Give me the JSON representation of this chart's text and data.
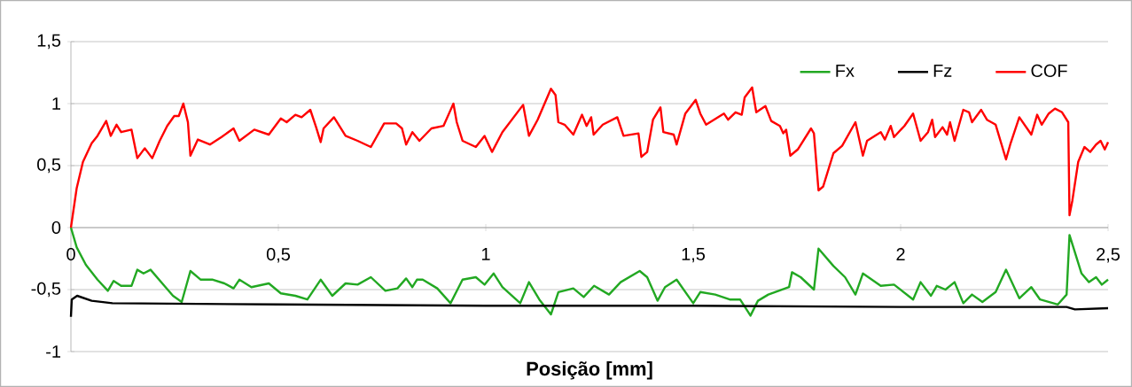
{
  "chart_data": {
    "type": "line",
    "xlabel": "**Posição [mm]**",
    "xlim": [
      0,
      2.5
    ],
    "ylim": [
      -1,
      1.5
    ],
    "xticks": [
      0,
      {
        "value": 0.5,
        "label": "0,5"
      },
      1,
      {
        "value": 1.5,
        "label": "1,5"
      },
      2,
      {
        "value": 2.5,
        "label": "2,5"
      }
    ],
    "yticks": [
      -1,
      {
        "value": -0.5,
        "label": "-0,5"
      },
      0,
      {
        "value": 0.5,
        "label": "0,5"
      },
      1,
      {
        "value": 1.5,
        "label": "1,5"
      }
    ],
    "grid": "y",
    "legend": "top right",
    "series": [
      {
        "name": "Fx",
        "color": "#22a822",
        "x": [
          0,
          0.014,
          0.036,
          0.064,
          0.089,
          0.103,
          0.121,
          0.146,
          0.16,
          0.175,
          0.192,
          0.228,
          0.246,
          0.267,
          0.288,
          0.313,
          0.342,
          0.37,
          0.392,
          0.406,
          0.435,
          0.477,
          0.506,
          0.541,
          0.57,
          0.602,
          0.63,
          0.662,
          0.691,
          0.723,
          0.758,
          0.787,
          0.808,
          0.823,
          0.834,
          0.848,
          0.883,
          0.915,
          0.944,
          0.976,
          0.997,
          1.019,
          1.04,
          1.083,
          1.104,
          1.129,
          1.157,
          1.175,
          1.211,
          1.236,
          1.261,
          1.297,
          1.325,
          1.371,
          1.389,
          1.414,
          1.432,
          1.46,
          1.5,
          1.517,
          1.553,
          1.588,
          1.613,
          1.638,
          1.656,
          1.681,
          1.731,
          1.738,
          1.759,
          1.791,
          1.802,
          1.838,
          1.866,
          1.891,
          1.909,
          1.952,
          1.984,
          2.03,
          2.048,
          2.073,
          2.087,
          2.108,
          2.13,
          2.151,
          2.172,
          2.197,
          2.229,
          2.254,
          2.286,
          2.315,
          2.336,
          2.379,
          2.4,
          2.407,
          2.436,
          2.454,
          2.471,
          2.485,
          2.5
        ],
        "values": [
          0,
          -0.16,
          -0.3,
          -0.42,
          -0.51,
          -0.43,
          -0.47,
          -0.47,
          -0.34,
          -0.37,
          -0.34,
          -0.48,
          -0.55,
          -0.6,
          -0.35,
          -0.42,
          -0.42,
          -0.45,
          -0.49,
          -0.42,
          -0.48,
          -0.45,
          -0.53,
          -0.55,
          -0.58,
          -0.42,
          -0.55,
          -0.45,
          -0.46,
          -0.4,
          -0.51,
          -0.49,
          -0.41,
          -0.48,
          -0.42,
          -0.42,
          -0.49,
          -0.61,
          -0.42,
          -0.4,
          -0.46,
          -0.37,
          -0.48,
          -0.61,
          -0.44,
          -0.58,
          -0.7,
          -0.52,
          -0.49,
          -0.56,
          -0.47,
          -0.54,
          -0.44,
          -0.35,
          -0.4,
          -0.59,
          -0.48,
          -0.42,
          -0.61,
          -0.52,
          -0.54,
          -0.58,
          -0.58,
          -0.71,
          -0.59,
          -0.54,
          -0.48,
          -0.36,
          -0.4,
          -0.5,
          -0.17,
          -0.31,
          -0.4,
          -0.54,
          -0.37,
          -0.47,
          -0.46,
          -0.58,
          -0.44,
          -0.55,
          -0.47,
          -0.5,
          -0.44,
          -0.61,
          -0.54,
          -0.6,
          -0.52,
          -0.34,
          -0.57,
          -0.48,
          -0.58,
          -0.62,
          -0.54,
          -0.06,
          -0.37,
          -0.44,
          -0.4,
          -0.46,
          -0.42
        ]
      },
      {
        "name": "Fz",
        "color": "#000000",
        "x": [
          0,
          0.002,
          0.015,
          0.05,
          0.1,
          0.5,
          1.0,
          1.5,
          2.0,
          2.4,
          2.42,
          2.5
        ],
        "values": [
          -0.72,
          -0.58,
          -0.55,
          -0.59,
          -0.61,
          -0.62,
          -0.63,
          -0.63,
          -0.64,
          -0.64,
          -0.66,
          -0.65
        ]
      },
      {
        "name": "COF",
        "color": "#ff0000",
        "x": [
          0,
          0.014,
          0.029,
          0.05,
          0.064,
          0.085,
          0.096,
          0.11,
          0.121,
          0.146,
          0.16,
          0.178,
          0.196,
          0.214,
          0.232,
          0.249,
          0.26,
          0.271,
          0.282,
          0.288,
          0.306,
          0.335,
          0.363,
          0.392,
          0.406,
          0.442,
          0.477,
          0.506,
          0.52,
          0.541,
          0.556,
          0.577,
          0.591,
          0.602,
          0.609,
          0.634,
          0.662,
          0.691,
          0.723,
          0.755,
          0.784,
          0.798,
          0.808,
          0.823,
          0.84,
          0.869,
          0.898,
          0.922,
          0.93,
          0.944,
          0.976,
          0.997,
          1.015,
          1.04,
          1.09,
          1.104,
          1.125,
          1.157,
          1.168,
          1.175,
          1.19,
          1.211,
          1.232,
          1.243,
          1.254,
          1.26,
          1.282,
          1.317,
          1.332,
          1.368,
          1.375,
          1.389,
          1.403,
          1.421,
          1.428,
          1.453,
          1.46,
          1.481,
          1.506,
          1.517,
          1.531,
          1.574,
          1.584,
          1.602,
          1.617,
          1.624,
          1.642,
          1.652,
          1.674,
          1.688,
          1.709,
          1.717,
          1.724,
          1.734,
          1.752,
          1.784,
          1.791,
          1.802,
          1.813,
          1.838,
          1.859,
          1.891,
          1.909,
          1.919,
          1.952,
          1.962,
          1.976,
          1.984,
          2.009,
          2.03,
          2.048,
          2.066,
          2.076,
          2.083,
          2.101,
          2.112,
          2.119,
          2.13,
          2.151,
          2.165,
          2.172,
          2.194,
          2.208,
          2.229,
          2.254,
          2.265,
          2.286,
          2.315,
          2.329,
          2.34,
          2.357,
          2.372,
          2.389,
          2.404,
          2.407,
          2.414,
          2.428,
          2.443,
          2.457,
          2.471,
          2.482,
          2.492,
          2.5
        ],
        "values": [
          0,
          0.32,
          0.53,
          0.68,
          0.74,
          0.86,
          0.74,
          0.83,
          0.77,
          0.79,
          0.56,
          0.64,
          0.56,
          0.7,
          0.82,
          0.9,
          0.9,
          1.0,
          0.85,
          0.58,
          0.71,
          0.67,
          0.73,
          0.8,
          0.7,
          0.79,
          0.75,
          0.88,
          0.85,
          0.91,
          0.89,
          0.95,
          0.81,
          0.69,
          0.8,
          0.89,
          0.74,
          0.7,
          0.65,
          0.84,
          0.84,
          0.8,
          0.67,
          0.77,
          0.7,
          0.8,
          0.82,
          1.0,
          0.85,
          0.7,
          0.65,
          0.74,
          0.61,
          0.77,
          0.99,
          0.74,
          0.87,
          1.12,
          1.07,
          0.85,
          0.83,
          0.75,
          0.91,
          0.82,
          0.89,
          0.75,
          0.83,
          0.89,
          0.74,
          0.76,
          0.57,
          0.61,
          0.87,
          0.97,
          0.77,
          0.75,
          0.67,
          0.92,
          1.03,
          0.92,
          0.83,
          0.92,
          0.87,
          0.93,
          0.91,
          1.05,
          1.13,
          0.93,
          0.98,
          0.86,
          0.82,
          0.76,
          0.79,
          0.58,
          0.63,
          0.8,
          0.76,
          0.3,
          0.33,
          0.6,
          0.66,
          0.85,
          0.58,
          0.7,
          0.77,
          0.71,
          0.82,
          0.73,
          0.82,
          0.92,
          0.7,
          0.77,
          0.87,
          0.73,
          0.81,
          0.75,
          0.85,
          0.7,
          0.95,
          0.93,
          0.85,
          0.95,
          0.87,
          0.83,
          0.55,
          0.68,
          0.89,
          0.75,
          0.91,
          0.83,
          0.92,
          0.96,
          0.93,
          0.85,
          0.1,
          0.22,
          0.53,
          0.65,
          0.61,
          0.67,
          0.7,
          0.63,
          0.69
        ]
      }
    ]
  }
}
